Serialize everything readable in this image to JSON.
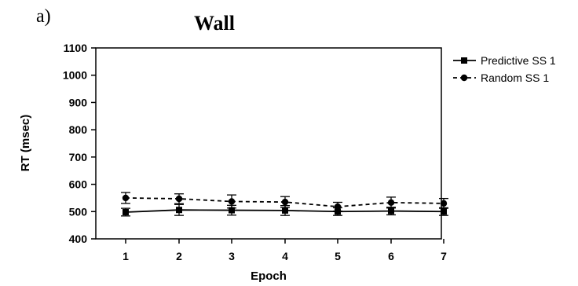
{
  "chart_data": {
    "type": "line",
    "panel_label": "a)",
    "title": "Wall",
    "xlabel": "Epoch",
    "ylabel": "RT (msec)",
    "x": [
      1,
      2,
      3,
      4,
      5,
      6,
      7
    ],
    "xticks": [
      "1",
      "2",
      "3",
      "4",
      "5",
      "6",
      "7"
    ],
    "ylim": [
      400,
      1100
    ],
    "yticks": [
      "400",
      "500",
      "600",
      "700",
      "800",
      "900",
      "1000",
      "1100"
    ],
    "grid": false,
    "legend_position": "right",
    "series": [
      {
        "name": "Predictive SS 1",
        "marker": "square",
        "line": "solid",
        "values": [
          498,
          506,
          505,
          504,
          500,
          502,
          500
        ],
        "errors": [
          14,
          20,
          18,
          18,
          14,
          14,
          14
        ]
      },
      {
        "name": "Random SS 1",
        "marker": "circle",
        "line": "dashed",
        "values": [
          550,
          547,
          537,
          535,
          518,
          533,
          530
        ],
        "errors": [
          20,
          18,
          24,
          20,
          16,
          20,
          18
        ]
      }
    ],
    "colors": {
      "line": "#000000",
      "background": "#ffffff"
    }
  }
}
